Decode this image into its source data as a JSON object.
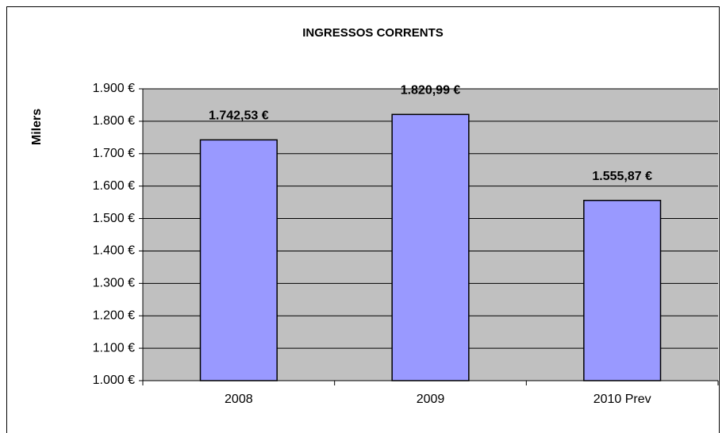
{
  "chart_data": {
    "type": "bar",
    "title": "INGRESSOS CORRENTS",
    "y_label": "Milers",
    "categories": [
      "2008",
      "2009",
      "2010 Prev"
    ],
    "values": [
      1742.53,
      1820.99,
      1555.87
    ],
    "value_labels": [
      "1.742,53 €",
      "1.820,99 €",
      "1.555,87 €"
    ],
    "color": "#9999ff",
    "ylim": [
      1000,
      1900
    ],
    "yticks": [
      {
        "value": 1000,
        "label": "1.000 €"
      },
      {
        "value": 1100,
        "label": "1.100 €"
      },
      {
        "value": 1200,
        "label": "1.200 €"
      },
      {
        "value": 1300,
        "label": "1.300 €"
      },
      {
        "value": 1400,
        "label": "1.400 €"
      },
      {
        "value": 1500,
        "label": "1.500 €"
      },
      {
        "value": 1600,
        "label": "1.600 €"
      },
      {
        "value": 1700,
        "label": "1.700 €"
      },
      {
        "value": 1800,
        "label": "1.800 €"
      },
      {
        "value": 1900,
        "label": "1.900 €"
      }
    ],
    "grid": true
  }
}
